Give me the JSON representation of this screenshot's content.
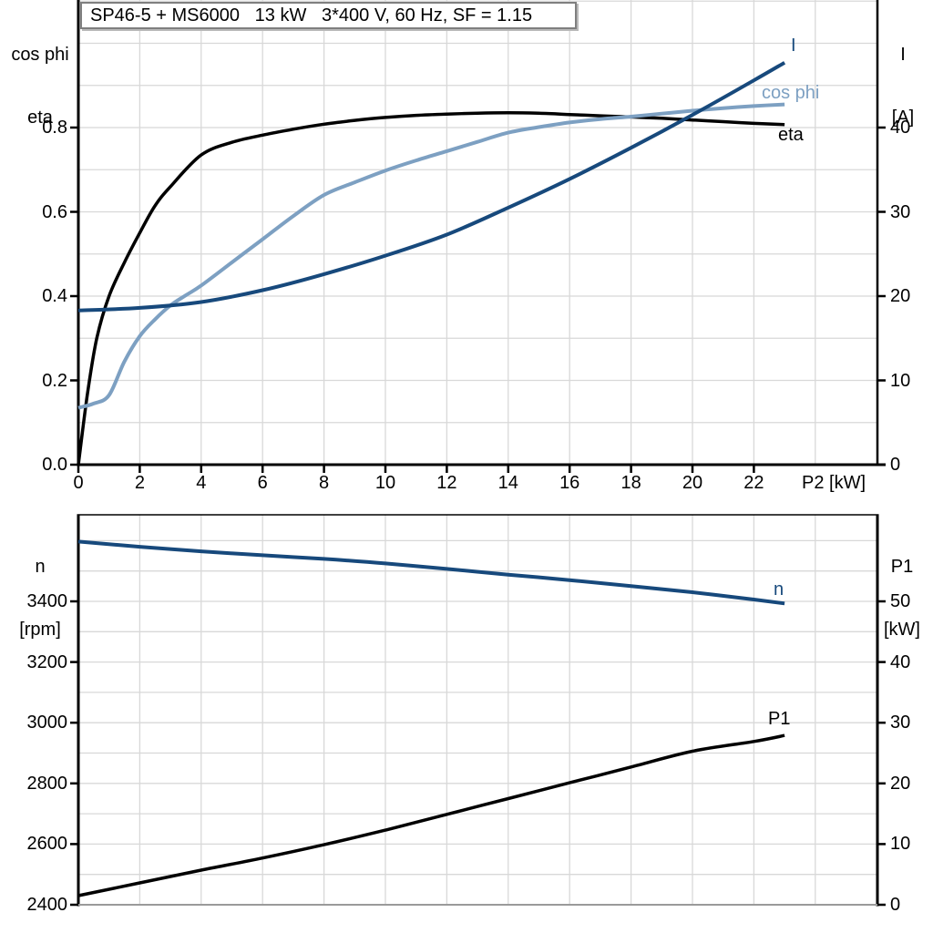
{
  "title": "SP46-5 + MS6000   13 kW   3*400 V, 60 Hz, SF = 1.15",
  "colors": {
    "black": "#000000",
    "dark_blue": "#17497c",
    "light_blue": "#7da0c2",
    "grid": "#d8d8d8",
    "axis": "#000000",
    "frame_gray": "#9a9a9a"
  },
  "chart_data": [
    {
      "type": "line",
      "title": "SP46-5 + MS6000   13 kW   3*400 V, 60 Hz, SF = 1.15",
      "xlabel": "P2 [kW]",
      "x_range": [
        0,
        26
      ],
      "x_ticks": [
        0,
        2,
        4,
        6,
        8,
        10,
        12,
        14,
        16,
        18,
        20,
        22
      ],
      "x_tick_labels": [
        "0",
        "2",
        "4",
        "6",
        "8",
        "10",
        "12",
        "14",
        "16",
        "18",
        "20",
        "22"
      ],
      "grid_x": [
        2,
        4,
        6,
        8,
        10,
        12,
        14,
        16,
        18,
        20,
        22,
        24
      ],
      "left_axis": {
        "title_lines": [
          "cos phi",
          "eta"
        ],
        "range": [
          0,
          1.1
        ],
        "ticks": [
          0,
          0.2,
          0.4,
          0.6,
          0.8
        ],
        "tick_labels": [
          "0.0",
          "0.2",
          "0.4",
          "0.6",
          "0.8"
        ],
        "grid": [
          0.1,
          0.2,
          0.3,
          0.4,
          0.5,
          0.6,
          0.7,
          0.8,
          0.9,
          1.0,
          1.1
        ]
      },
      "right_axis": {
        "title_lines": [
          "I",
          "[A]"
        ],
        "range": [
          0,
          55
        ],
        "ticks": [
          0,
          10,
          20,
          30,
          40
        ],
        "tick_labels": [
          "0",
          "10",
          "20",
          "30",
          "40"
        ]
      },
      "series": [
        {
          "name": "eta",
          "label": "eta",
          "color": "black",
          "axis": "left",
          "label_x": 854,
          "label_y": 137,
          "points": [
            [
              0,
              0
            ],
            [
              0.3,
              0.17
            ],
            [
              0.6,
              0.3
            ],
            [
              1,
              0.4
            ],
            [
              1.5,
              0.48
            ],
            [
              2,
              0.55
            ],
            [
              2.5,
              0.615
            ],
            [
              3,
              0.66
            ],
            [
              4,
              0.735
            ],
            [
              5,
              0.765
            ],
            [
              6,
              0.782
            ],
            [
              7,
              0.796
            ],
            [
              8,
              0.808
            ],
            [
              9,
              0.817
            ],
            [
              10,
              0.824
            ],
            [
              11,
              0.829
            ],
            [
              12,
              0.832
            ],
            [
              13,
              0.834
            ],
            [
              14,
              0.835
            ],
            [
              15,
              0.834
            ],
            [
              16,
              0.831
            ],
            [
              17,
              0.828
            ],
            [
              18,
              0.825
            ],
            [
              19,
              0.822
            ],
            [
              20,
              0.818
            ],
            [
              21,
              0.814
            ],
            [
              22,
              0.81
            ],
            [
              23,
              0.807
            ]
          ]
        },
        {
          "name": "cos phi",
          "label": "cos phi",
          "color": "light_blue",
          "axis": "left",
          "label_x": 836,
          "label_y": 91,
          "points": [
            [
              0,
              0.135
            ],
            [
              0.5,
              0.145
            ],
            [
              1,
              0.165
            ],
            [
              1.5,
              0.245
            ],
            [
              2,
              0.305
            ],
            [
              2.5,
              0.345
            ],
            [
              3,
              0.378
            ],
            [
              3.5,
              0.402
            ],
            [
              4,
              0.425
            ],
            [
              5,
              0.48
            ],
            [
              6,
              0.535
            ],
            [
              7,
              0.59
            ],
            [
              8,
              0.64
            ],
            [
              9,
              0.67
            ],
            [
              10,
              0.698
            ],
            [
              11,
              0.722
            ],
            [
              12,
              0.744
            ],
            [
              13,
              0.766
            ],
            [
              14,
              0.788
            ],
            [
              15,
              0.801
            ],
            [
              16,
              0.812
            ],
            [
              17,
              0.82
            ],
            [
              18,
              0.826
            ],
            [
              19,
              0.833
            ],
            [
              20,
              0.84
            ],
            [
              21,
              0.846
            ],
            [
              22,
              0.851
            ],
            [
              23,
              0.855
            ]
          ]
        },
        {
          "name": "I",
          "label": "I",
          "color": "dark_blue",
          "axis": "right",
          "label_x": 868,
          "label_y": 39,
          "points": [
            [
              0,
              18.3
            ],
            [
              2,
              18.6
            ],
            [
              4,
              19.3
            ],
            [
              6,
              20.7
            ],
            [
              8,
              22.6
            ],
            [
              10,
              24.8
            ],
            [
              12,
              27.3
            ],
            [
              14,
              30.5
            ],
            [
              16,
              33.9
            ],
            [
              18,
              37.6
            ],
            [
              20,
              41.5
            ],
            [
              22,
              45.6
            ],
            [
              23,
              47.7
            ]
          ]
        }
      ]
    },
    {
      "type": "line",
      "title": "",
      "xlabel": "",
      "x_range": [
        0,
        26
      ],
      "x_ticks": [],
      "x_tick_labels": [],
      "grid_x": [
        2,
        4,
        6,
        8,
        10,
        12,
        14,
        16,
        18,
        20,
        22,
        24
      ],
      "left_axis": {
        "title_lines": [
          "n",
          "[rpm]"
        ],
        "range": [
          2400,
          3685
        ],
        "ticks": [
          2400,
          2600,
          2800,
          3000,
          3200,
          3400
        ],
        "tick_labels": [
          "2400",
          "2600",
          "2800",
          "3000",
          "3200",
          "3400"
        ],
        "grid": [
          2500,
          2600,
          2700,
          2800,
          2900,
          3000,
          3100,
          3200,
          3300,
          3400,
          3500,
          3600
        ]
      },
      "right_axis": {
        "title_lines": [
          "P1",
          "[kW]"
        ],
        "range": [
          0,
          64
        ],
        "ticks": [
          0,
          10,
          20,
          30,
          40,
          50
        ],
        "tick_labels": [
          "0",
          "10",
          "20",
          "30",
          "40",
          "50"
        ]
      },
      "series": [
        {
          "name": "n",
          "label": "n",
          "color": "dark_blue",
          "axis": "left",
          "label_x": 849,
          "label_y": 636,
          "points": [
            [
              0,
              3597
            ],
            [
              2,
              3580
            ],
            [
              4,
              3565
            ],
            [
              6,
              3552
            ],
            [
              8,
              3540
            ],
            [
              10,
              3525
            ],
            [
              12,
              3507
            ],
            [
              14,
              3488
            ],
            [
              16,
              3470
            ],
            [
              18,
              3450
            ],
            [
              20,
              3430
            ],
            [
              22,
              3406
            ],
            [
              23,
              3393
            ]
          ]
        },
        {
          "name": "P1",
          "label": "P1",
          "color": "black",
          "axis": "right",
          "label_x": 843,
          "label_y": 778,
          "points": [
            [
              0,
              1.5
            ],
            [
              2,
              3.6
            ],
            [
              4,
              5.7
            ],
            [
              6,
              7.7
            ],
            [
              8,
              9.9
            ],
            [
              10,
              12.3
            ],
            [
              12,
              14.9
            ],
            [
              14,
              17.5
            ],
            [
              16,
              20.1
            ],
            [
              18,
              22.7
            ],
            [
              20,
              25.3
            ],
            [
              22,
              26.9
            ],
            [
              23,
              27.9
            ]
          ]
        }
      ]
    }
  ]
}
